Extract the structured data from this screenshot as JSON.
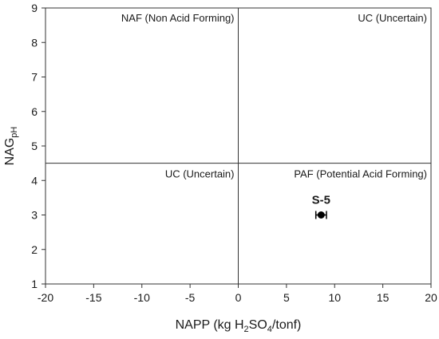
{
  "chart_data": {
    "type": "scatter",
    "xlabel": {
      "prefix": "NAPP (kg H",
      "sub1": "2",
      "middle": "SO",
      "sub2": "4",
      "suffix": "/tonf)"
    },
    "ylabel": {
      "main": "NAG",
      "sub": "pH"
    },
    "xlim": [
      -20,
      20
    ],
    "ylim": [
      1,
      9
    ],
    "xticks": [
      -20,
      -15,
      -10,
      -5,
      0,
      5,
      10,
      15,
      20
    ],
    "yticks": [
      1,
      2,
      3,
      4,
      5,
      6,
      7,
      8,
      9
    ],
    "grid": false,
    "divider_lines": {
      "x": 0,
      "y": 4.5
    },
    "quadrant_labels": [
      {
        "key": "naf",
        "text": "NAF (Non Acid Forming)",
        "position": "top-left"
      },
      {
        "key": "uc_top",
        "text": "UC (Uncertain)",
        "position": "top-right"
      },
      {
        "key": "uc_bottom",
        "text": "UC (Uncertain)",
        "position": "bottom-left"
      },
      {
        "key": "paf",
        "text": "PAF (Potential Acid Forming)",
        "position": "bottom-right"
      }
    ],
    "series": [
      {
        "points": [
          {
            "label": "S-5",
            "x": 8.6,
            "y": 3.0,
            "xerr": 0.55
          }
        ],
        "color": "#000000"
      }
    ]
  }
}
